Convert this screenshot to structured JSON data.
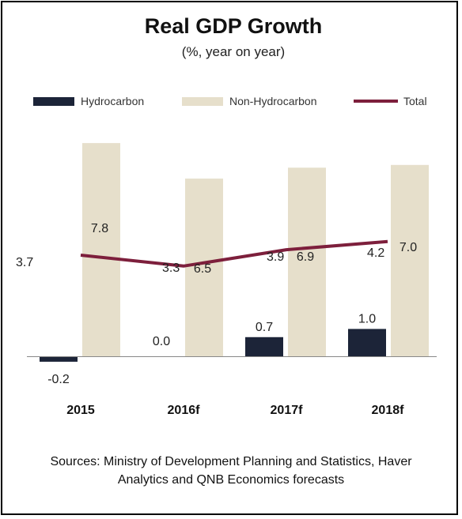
{
  "chart_data": {
    "type": "bar",
    "title": "Real GDP Growth",
    "subtitle": "(%, year on year)",
    "categories": [
      "2015",
      "2016f",
      "2017f",
      "2018f"
    ],
    "series": [
      {
        "name": "Hydrocarbon",
        "type": "bar",
        "values": [
          -0.2,
          0.0,
          0.7,
          1.0
        ],
        "labels": [
          "-0.2",
          "0.0",
          "0.7",
          "1.0"
        ],
        "color": "#1c2438"
      },
      {
        "name": "Non-Hydrocarbon",
        "type": "bar",
        "values": [
          7.8,
          6.5,
          6.9,
          7.0
        ],
        "labels": [
          "7.8",
          "6.5",
          "6.9",
          "7.0"
        ],
        "color": "#e6dfcb"
      },
      {
        "name": "Total",
        "type": "line",
        "values": [
          3.7,
          3.3,
          3.9,
          4.2
        ],
        "labels": [
          "3.7",
          "3.3",
          "3.9",
          "4.2"
        ],
        "color": "#7d1f3c"
      }
    ],
    "ylim": [
      -0.2,
      7.8
    ],
    "legend_position": "top",
    "grid": false
  },
  "source_text": "Sources: Ministry of Development Planning and Statistics, Haver Analytics and QNB Economics forecasts"
}
